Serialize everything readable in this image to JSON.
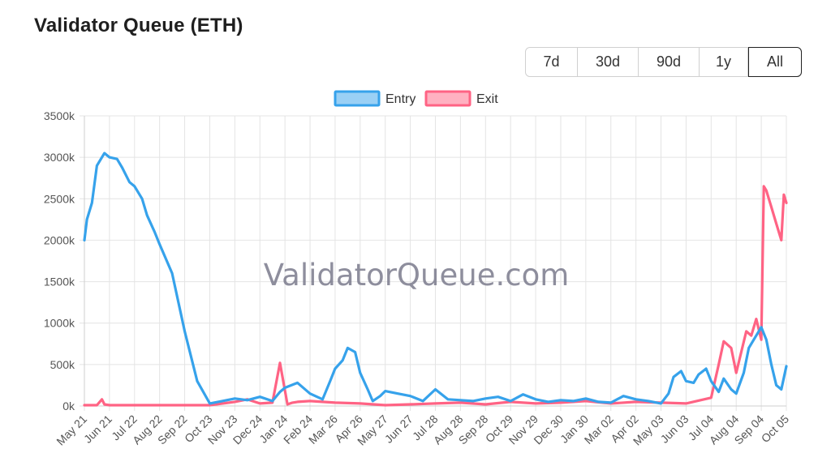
{
  "header": {
    "title": "Validator Queue (ETH)"
  },
  "range_buttons": [
    {
      "label": "7d",
      "active": false
    },
    {
      "label": "30d",
      "active": false
    },
    {
      "label": "90d",
      "active": false
    },
    {
      "label": "1y",
      "active": false
    },
    {
      "label": "All",
      "active": true
    }
  ],
  "watermark": "ValidatorQueue.com",
  "colors": {
    "entry": "#36a2eb",
    "exit": "#ff6384",
    "entry_fill": "#9ad0f5",
    "exit_fill": "#ffb1c1"
  },
  "chart_data": {
    "type": "line",
    "title": "",
    "xlabel": "",
    "ylabel": "",
    "ylim": [
      0,
      3500
    ],
    "yticks": [
      "0k",
      "500k",
      "1000k",
      "1500k",
      "2000k",
      "2500k",
      "3000k",
      "3500k"
    ],
    "xticks": [
      "May 21",
      "Jun 21",
      "Jul 22",
      "Aug 22",
      "Sep 22",
      "Oct 23",
      "Nov 23",
      "Dec 24",
      "Jan 24",
      "Feb 24",
      "Mar 26",
      "Apr 26",
      "May 27",
      "Jun 27",
      "Jul 28",
      "Aug 28",
      "Sep 28",
      "Oct 29",
      "Nov 29",
      "Dec 30",
      "Jan 30",
      "Mar 02",
      "Apr 02",
      "May 03",
      "Jun 03",
      "Jul 04",
      "Aug 04",
      "Sep 04",
      "Oct 05"
    ],
    "grid": true,
    "legend_position": "top-center",
    "series": [
      {
        "name": "Entry",
        "x": [
          0,
          0.1,
          0.3,
          0.5,
          0.8,
          1.0,
          1.3,
          1.5,
          1.8,
          2.0,
          2.3,
          2.5,
          2.8,
          3.0,
          3.5,
          4.0,
          4.5,
          5.0,
          5.5,
          6.0,
          6.5,
          7.0,
          7.5,
          7.8,
          8.0,
          8.5,
          9.0,
          9.5,
          9.8,
          10.0,
          10.3,
          10.5,
          10.8,
          11.0,
          11.3,
          11.5,
          11.8,
          12.0,
          12.5,
          13.0,
          13.5,
          14.0,
          14.5,
          15.0,
          15.5,
          16.0,
          16.5,
          17.0,
          17.5,
          18.0,
          18.5,
          19.0,
          19.5,
          20.0,
          20.5,
          21.0,
          21.5,
          22.0,
          22.5,
          23.0,
          23.3,
          23.5,
          23.8,
          24.0,
          24.3,
          24.5,
          24.8,
          25.0,
          25.3,
          25.5,
          25.8,
          26.0,
          26.3,
          26.5,
          26.8,
          27.0,
          27.2,
          27.4,
          27.6,
          27.8,
          28.0
        ],
        "values": [
          2000,
          2250,
          2450,
          2900,
          3050,
          3000,
          2980,
          2880,
          2700,
          2650,
          2500,
          2300,
          2100,
          1950,
          1600,
          900,
          300,
          30,
          60,
          90,
          70,
          110,
          60,
          170,
          220,
          280,
          150,
          80,
          300,
          450,
          550,
          700,
          650,
          400,
          200,
          60,
          120,
          180,
          150,
          120,
          60,
          200,
          80,
          70,
          60,
          90,
          110,
          60,
          140,
          80,
          50,
          70,
          60,
          90,
          50,
          40,
          120,
          80,
          60,
          30,
          150,
          350,
          420,
          300,
          280,
          380,
          450,
          300,
          170,
          330,
          200,
          150,
          400,
          700,
          850,
          950,
          800,
          500,
          250,
          200,
          480
        ],
        "color": "#36a2eb"
      },
      {
        "name": "Exit",
        "x": [
          0,
          0.5,
          0.7,
          0.8,
          1.0,
          2.0,
          3.0,
          4.0,
          5.0,
          6.0,
          6.5,
          7.0,
          7.5,
          7.8,
          7.9,
          8.1,
          8.3,
          8.5,
          9.0,
          10.0,
          11.0,
          12.0,
          13.0,
          14.0,
          15.0,
          16.0,
          17.0,
          18.0,
          19.0,
          20.0,
          21.0,
          22.0,
          23.0,
          24.0,
          25.0,
          25.3,
          25.5,
          25.8,
          26.0,
          26.2,
          26.4,
          26.6,
          26.8,
          27.0,
          27.1,
          27.2,
          27.4,
          27.6,
          27.8,
          27.9,
          28.0
        ],
        "values": [
          10,
          10,
          80,
          20,
          10,
          10,
          10,
          10,
          10,
          50,
          80,
          30,
          40,
          520,
          350,
          20,
          40,
          50,
          60,
          40,
          30,
          10,
          20,
          30,
          40,
          20,
          50,
          30,
          40,
          60,
          30,
          50,
          40,
          30,
          100,
          500,
          780,
          700,
          400,
          650,
          900,
          850,
          1050,
          800,
          2650,
          2600,
          2400,
          2200,
          2000,
          2550,
          2450
        ],
        "color": "#ff6384"
      }
    ]
  }
}
